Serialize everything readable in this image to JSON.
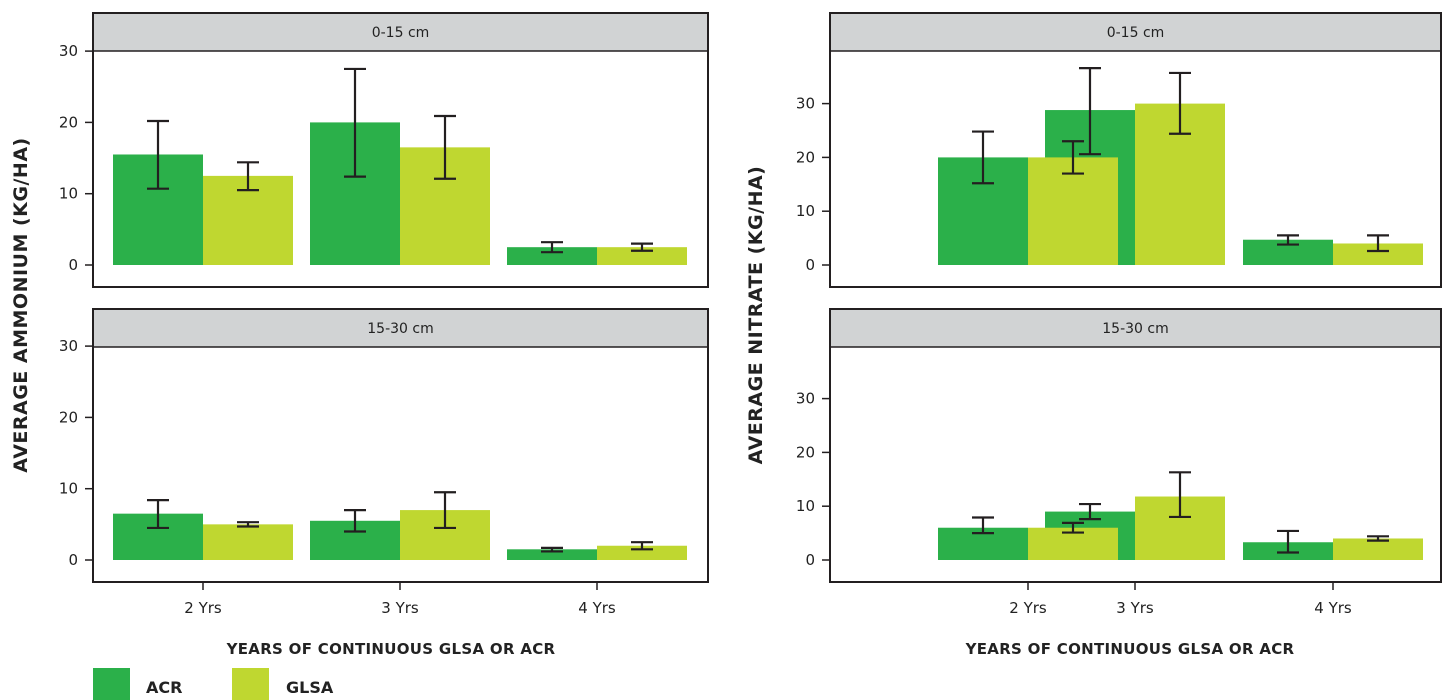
{
  "colors": {
    "ACR": "#2bb04a",
    "GLSA": "#bfd730",
    "strip": "#d1d3d4",
    "frame": "#231f20"
  },
  "legend": [
    {
      "name": "ACR",
      "color": "#2bb04a"
    },
    {
      "name": "GLSA",
      "color": "#bfd730"
    }
  ],
  "chart_data": [
    {
      "type": "bar",
      "ylabel": "AVERAGE AMMONIUM (KG/HA)",
      "xlabel": "YEARS OF CONTINUOUS GLSA OR ACR",
      "categories": [
        "2 Yrs",
        "3 Yrs",
        "4 Yrs"
      ],
      "ylim": [
        0,
        30
      ],
      "yticks": [
        0,
        10,
        20,
        30
      ],
      "grid": false,
      "facets": [
        {
          "strip": "0-15 cm",
          "series": [
            {
              "name": "ACR",
              "values": [
                15.5,
                20.0,
                2.5
              ],
              "err_low": [
                10.7,
                12.4,
                1.8
              ],
              "err_high": [
                20.2,
                27.5,
                3.2
              ]
            },
            {
              "name": "GLSA",
              "values": [
                12.5,
                16.5,
                2.5
              ],
              "err_low": [
                10.5,
                12.1,
                2.0
              ],
              "err_high": [
                14.4,
                20.9,
                3.0
              ]
            }
          ]
        },
        {
          "strip": "15-30 cm",
          "series": [
            {
              "name": "ACR",
              "values": [
                6.5,
                5.5,
                1.5
              ],
              "err_low": [
                4.5,
                4.0,
                1.2
              ],
              "err_high": [
                8.4,
                7.0,
                1.7
              ]
            },
            {
              "name": "GLSA",
              "values": [
                5.0,
                7.0,
                2.0
              ],
              "err_low": [
                4.7,
                4.5,
                1.5
              ],
              "err_high": [
                5.3,
                9.5,
                2.5
              ]
            }
          ]
        }
      ]
    },
    {
      "type": "bar",
      "ylabel": "AVERAGE NITRATE (KG/HA)",
      "xlabel": "YEARS OF CONTINUOUS GLSA OR ACR",
      "categories": [
        "2 Yrs",
        "3 Yrs",
        "4 Yrs"
      ],
      "ylim": [
        0,
        40
      ],
      "yticks": [
        0,
        10,
        20,
        30
      ],
      "grid": false,
      "facets": [
        {
          "strip": "0-15 cm",
          "series": [
            {
              "name": "ACR",
              "values": [
                20.0,
                28.8,
                4.7
              ],
              "err_low": [
                15.2,
                20.6,
                3.8
              ],
              "err_high": [
                24.8,
                36.6,
                5.5
              ]
            },
            {
              "name": "GLSA",
              "values": [
                20.0,
                30.0,
                4.0
              ],
              "err_low": [
                17.0,
                24.4,
                2.6
              ],
              "err_high": [
                23.0,
                35.7,
                5.5
              ]
            }
          ]
        },
        {
          "strip": "15-30 cm",
          "series": [
            {
              "name": "ACR",
              "values": [
                6.0,
                9.0,
                3.3
              ],
              "err_low": [
                5.0,
                7.6,
                1.4
              ],
              "err_high": [
                7.9,
                10.4,
                5.4
              ]
            },
            {
              "name": "GLSA",
              "values": [
                6.0,
                11.8,
                4.0
              ],
              "err_low": [
                5.1,
                8.0,
                3.6
              ],
              "err_high": [
                6.9,
                16.3,
                4.4
              ]
            }
          ]
        }
      ]
    }
  ]
}
